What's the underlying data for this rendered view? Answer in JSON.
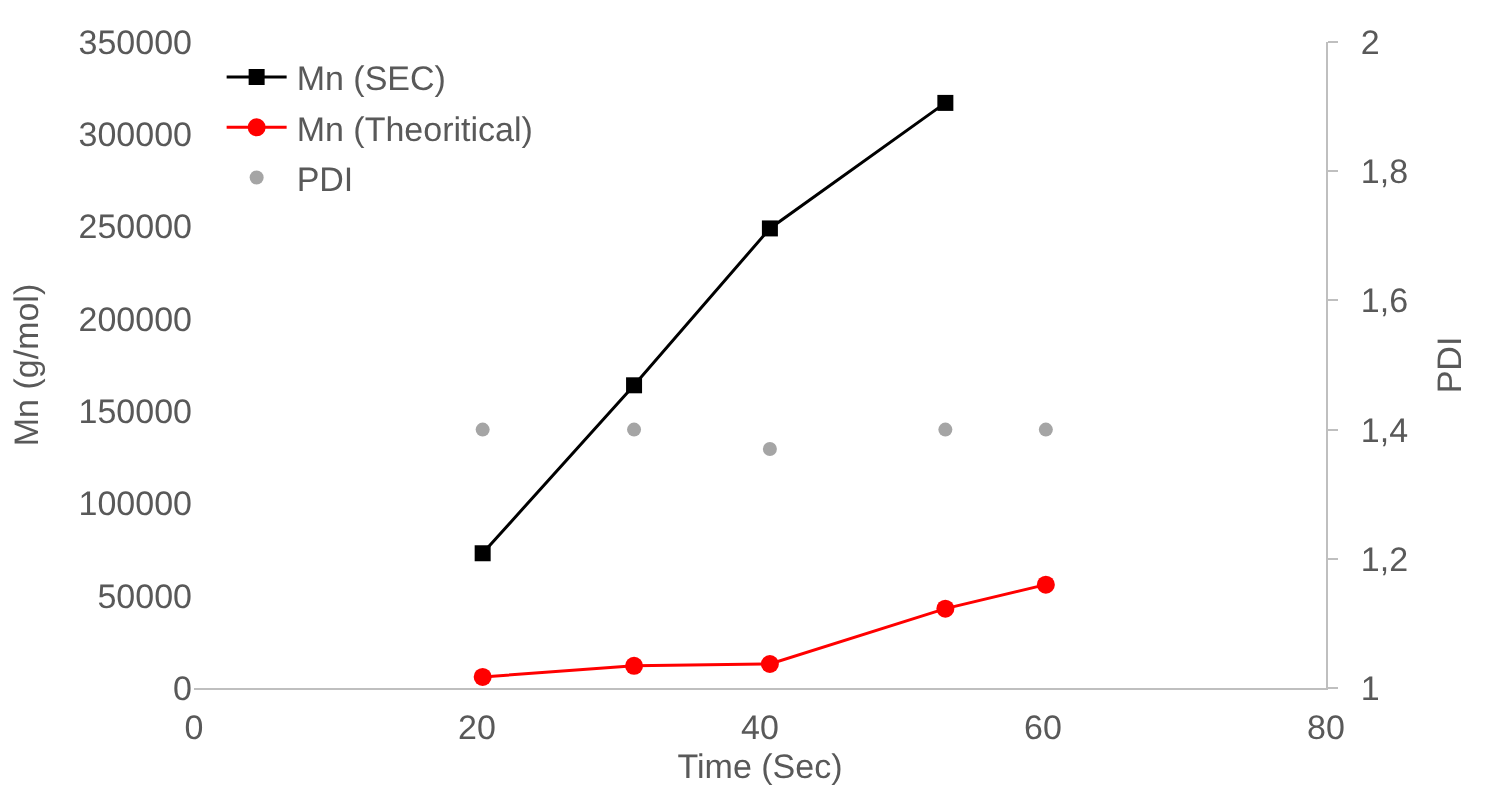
{
  "chart_data": {
    "type": "line",
    "xlabel": "Time (Sec)",
    "ylabel": "Mn (g/mol)",
    "y2label": "PDI",
    "xlim": [
      0,
      80
    ],
    "xticks": [
      0,
      20,
      40,
      60,
      80
    ],
    "ylim": [
      0,
      350000
    ],
    "yticks": [
      0,
      50000,
      100000,
      150000,
      200000,
      250000,
      300000,
      350000
    ],
    "y2lim": [
      1,
      2
    ],
    "y2ticks": [
      {
        "value": 1,
        "label": "1"
      },
      {
        "value": 1.2,
        "label": "1,2"
      },
      {
        "value": 1.4,
        "label": "1,4"
      },
      {
        "value": 1.6,
        "label": "1,6"
      },
      {
        "value": 1.8,
        "label": "1,8"
      },
      {
        "value": 2,
        "label": "2"
      }
    ],
    "legend": "top left",
    "series": [
      {
        "name": "Mn (SEC)",
        "color": "#000000",
        "marker": "square",
        "x": [
          20.4,
          31.1,
          40.7,
          53.1
        ],
        "values": [
          73000,
          164000,
          249000,
          317000
        ]
      },
      {
        "name": "Mn (Theoritical)",
        "color": "#ff0000",
        "marker": "circle",
        "x": [
          20.4,
          31.1,
          40.7,
          53.1,
          60.2
        ],
        "values": [
          6000,
          12000,
          13000,
          43000,
          56000
        ]
      },
      {
        "name": "PDI",
        "type": "scatter",
        "color": "#a5a5a5",
        "marker": "circle",
        "axis": "y2",
        "x": [
          20.4,
          31.1,
          40.7,
          53.1,
          60.2
        ],
        "values": [
          1.4,
          1.4,
          1.37,
          1.4,
          1.4
        ]
      }
    ]
  }
}
